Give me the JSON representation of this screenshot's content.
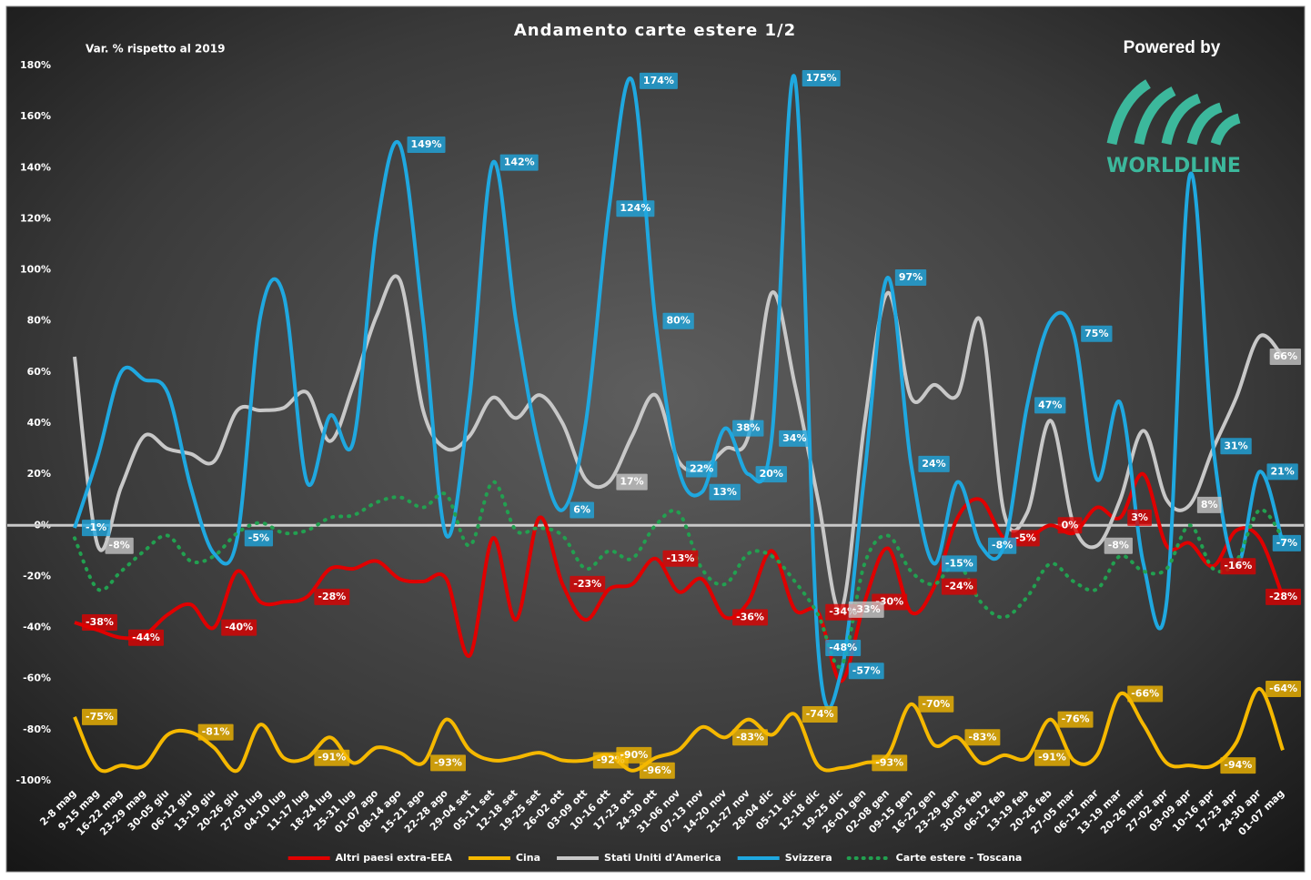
{
  "chart_data": {
    "type": "line",
    "title": "Andamento carte estere 1/2",
    "subtitle": "Var. % rispetto al 2019",
    "annotations": [
      "Powered by",
      "WORLDLINE"
    ],
    "smooth": true,
    "grid": false,
    "legend": "bottom",
    "categories": [
      "2-8 mag",
      "9-15 mag",
      "16-22 mag",
      "23-29 mag",
      "30-05 giu",
      "06-12 giu",
      "13-19 giu",
      "20-26 giu",
      "27-03 lug",
      "04-10 lug",
      "11-17 lug",
      "18-24 lug",
      "25-31 lug",
      "01-07 ago",
      "08-14 ago",
      "15-21 ago",
      "22-28 ago",
      "29-04 set",
      "05-11 set",
      "12-18 set",
      "19-25 set",
      "26-02 ott",
      "03-09 ott",
      "10-16 ott",
      "17-23 ott",
      "24-30 ott",
      "31-06 nov",
      "07-13 nov",
      "14-20 nov",
      "21-27 nov",
      "28-04 dic",
      "05-11 dic",
      "12-18 dic",
      "19-25 dic",
      "26-01 gen",
      "02-08 gen",
      "09-15 gen",
      "16-22 gen",
      "23-29 gen",
      "30-05 feb",
      "06-12 feb",
      "13-19 feb",
      "20-26 feb",
      "27-05 mar",
      "06-12 mar",
      "13-19 mar",
      "20-26 mar",
      "27-02 apr",
      "03-09 apr",
      "10-16 apr",
      "17-23 apr",
      "24-30 apr",
      "01-07 mag"
    ],
    "ylim": [
      -100,
      180
    ],
    "yticks": [
      {
        "value": -100,
        "label": "-100%"
      },
      {
        "value": -80,
        "label": "-80%"
      },
      {
        "value": -60,
        "label": "-60%"
      },
      {
        "value": -40,
        "label": "-40%"
      },
      {
        "value": -20,
        "label": "-20%"
      },
      {
        "value": 0,
        "label": "0%"
      },
      {
        "value": 20,
        "label": "20%"
      },
      {
        "value": 40,
        "label": "40%"
      },
      {
        "value": 60,
        "label": "60%"
      },
      {
        "value": 80,
        "label": "80%"
      },
      {
        "value": 100,
        "label": "100%"
      },
      {
        "value": 120,
        "label": "120%"
      },
      {
        "value": 140,
        "label": "140%"
      },
      {
        "value": 160,
        "label": "160%"
      },
      {
        "value": 180,
        "label": "180%"
      }
    ],
    "series": [
      {
        "name": "Altri paesi extra-EEA",
        "color": "#e00000",
        "style": "solid",
        "values": [
          -38,
          -41,
          -44,
          -43,
          -35,
          -31,
          -40,
          -18,
          -30,
          -30,
          -28,
          -17,
          -17,
          -14,
          -21,
          -22,
          -21,
          -51,
          -5,
          -37,
          3,
          -23,
          -37,
          -25,
          -23,
          -13,
          -26,
          -21,
          -36,
          -30,
          -10,
          -33,
          -34,
          -61,
          -30,
          -9,
          -34,
          -24,
          3,
          10,
          -5,
          -5,
          0,
          -3,
          7,
          3,
          20,
          -8,
          -7,
          -16,
          -2,
          -5,
          -28
        ],
        "value_labels": [
          "-38%",
          null,
          "-44%",
          null,
          null,
          null,
          "-40%",
          null,
          null,
          null,
          "-28%",
          null,
          null,
          null,
          null,
          null,
          null,
          null,
          null,
          null,
          null,
          "-23%",
          null,
          null,
          null,
          "-13%",
          null,
          null,
          "-36%",
          null,
          null,
          null,
          "-34%",
          null,
          "-30%",
          null,
          null,
          "-24%",
          null,
          null,
          "-5%",
          null,
          "0%",
          null,
          null,
          "3%",
          null,
          null,
          null,
          "-16%",
          null,
          null,
          "-28%"
        ]
      },
      {
        "name": "Cina",
        "color": "#f5b800",
        "style": "solid",
        "values": [
          -75,
          -95,
          -94,
          -94,
          -82,
          -81,
          -87,
          -96,
          -78,
          -91,
          -91,
          -83,
          -93,
          -87,
          -89,
          -93,
          -76,
          -88,
          -92,
          -91,
          -89,
          -92,
          -92,
          -90,
          -96,
          -91,
          -88,
          -79,
          -83,
          -76,
          -82,
          -74,
          -94,
          -95,
          -93,
          -90,
          -70,
          -86,
          -83,
          -93,
          -90,
          -91,
          -76,
          -92,
          -90,
          -66,
          -78,
          -93,
          -94,
          -94,
          -85,
          -64,
          -88
        ],
        "value_labels": [
          "-75%",
          null,
          null,
          null,
          null,
          "-81%",
          null,
          null,
          null,
          null,
          "-91%",
          null,
          null,
          null,
          null,
          "-93%",
          null,
          null,
          null,
          null,
          null,
          null,
          "-92%",
          "-90%",
          "-96%",
          null,
          null,
          null,
          "-83%",
          null,
          null,
          "-74%",
          null,
          null,
          "-93%",
          null,
          "-70%",
          null,
          "-83%",
          null,
          null,
          "-91%",
          "-76%",
          null,
          null,
          "-66%",
          null,
          null,
          null,
          "-94%",
          null,
          "-64%",
          null
        ]
      },
      {
        "name": "Stati Uniti d'America",
        "color": "#c8c8c8",
        "style": "solid",
        "values": [
          66,
          -8,
          15,
          35,
          30,
          28,
          25,
          45,
          45,
          46,
          52,
          33,
          55,
          82,
          96,
          45,
          30,
          35,
          50,
          42,
          51,
          40,
          18,
          17,
          35,
          51,
          25,
          22,
          30,
          35,
          91,
          55,
          10,
          -33,
          40,
          91,
          50,
          55,
          51,
          80,
          5,
          5,
          41,
          0,
          -8,
          10,
          37,
          10,
          8,
          30,
          50,
          74,
          66
        ],
        "value_labels": [
          null,
          "-8%",
          null,
          null,
          null,
          null,
          null,
          null,
          null,
          null,
          null,
          null,
          null,
          null,
          null,
          null,
          null,
          null,
          null,
          null,
          null,
          null,
          null,
          "17%",
          null,
          null,
          null,
          null,
          null,
          null,
          null,
          null,
          null,
          "-33%",
          null,
          null,
          null,
          null,
          null,
          null,
          null,
          null,
          null,
          null,
          "-8%",
          null,
          null,
          null,
          "8%",
          null,
          null,
          null,
          "66%"
        ]
      },
      {
        "name": "Svizzera",
        "color": "#1fa8e0",
        "style": "solid",
        "values": [
          -1,
          27,
          60,
          57,
          52,
          15,
          -11,
          -5,
          82,
          90,
          17,
          43,
          33,
          116,
          149,
          80,
          -4,
          50,
          142,
          80,
          30,
          6,
          40,
          124,
          174,
          80,
          22,
          13,
          38,
          20,
          34,
          175,
          -48,
          -57,
          20,
          97,
          24,
          -15,
          17,
          -8,
          -8,
          47,
          80,
          75,
          18,
          48,
          -15,
          -30,
          137,
          31,
          -16,
          21,
          -7
        ],
        "value_labels": [
          "-1%",
          null,
          null,
          null,
          null,
          null,
          null,
          "-5%",
          null,
          null,
          null,
          null,
          null,
          null,
          "149%",
          null,
          null,
          null,
          "142%",
          null,
          null,
          "6%",
          null,
          "124%",
          "174%",
          "80%",
          "22%",
          "13%",
          "38%",
          "20%",
          "34%",
          "175%",
          "-48%",
          "-57%",
          null,
          "97%",
          "24%",
          "-15%",
          null,
          "-8%",
          null,
          "47%",
          null,
          "75%",
          null,
          null,
          null,
          null,
          null,
          "31%",
          null,
          "21%",
          "-7%"
        ]
      },
      {
        "name": "Carte estere - Toscana",
        "color": "#22a050",
        "style": "dotted",
        "values": [
          -5,
          -25,
          -18,
          -10,
          -4,
          -14,
          -12,
          -3,
          1,
          -3,
          -2,
          3,
          4,
          9,
          11,
          7,
          12,
          -8,
          17,
          -2,
          -1,
          -4,
          -17,
          -10,
          -13,
          0,
          5,
          -17,
          -23,
          -11,
          -12,
          -22,
          -35,
          -55,
          -15,
          -4,
          -18,
          -23,
          -15,
          -30,
          -36,
          -28,
          -15,
          -22,
          -25,
          -12,
          -18,
          -17,
          0,
          -17,
          -14,
          6,
          -5
        ]
      }
    ]
  }
}
